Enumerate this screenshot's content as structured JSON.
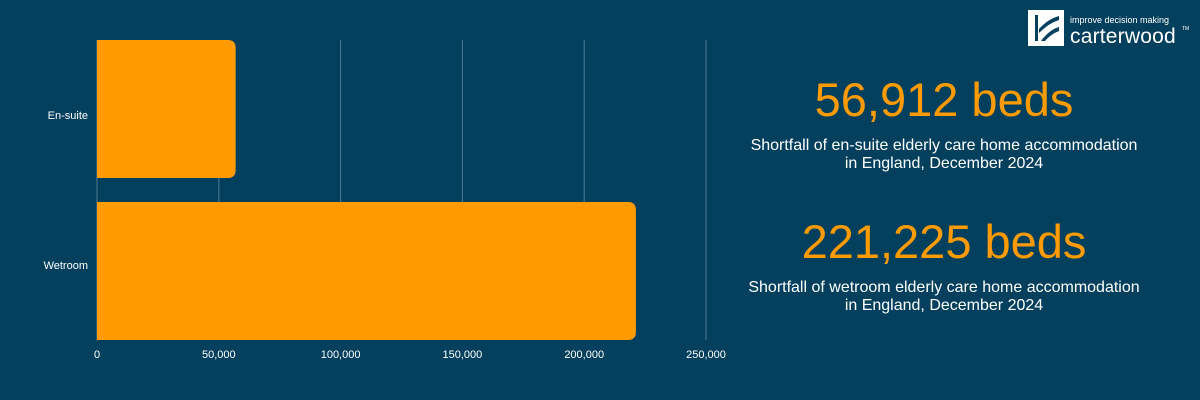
{
  "chart_data": {
    "type": "bar",
    "orientation": "horizontal",
    "categories": [
      "En-suite",
      "Wetroom"
    ],
    "values": [
      56912,
      221225
    ],
    "xlim": [
      0,
      250000
    ],
    "xticks": [
      "0",
      "50,000",
      "100,000",
      "150,000",
      "200,000",
      "250,000"
    ],
    "grid": true,
    "bar_color": "#ff9b00",
    "background_color": "#03405e"
  },
  "stats": [
    {
      "value": "56,912 beds",
      "description": "Shortfall of en-suite elderly care home accommodation in England, December 2024"
    },
    {
      "value": "221,225 beds",
      "description": "Shortfall of wetroom elderly care home accommodation in England, December 2024"
    }
  ],
  "logo": {
    "tagline": "improve decision making",
    "name": "carterwood"
  },
  "colors": {
    "accent": "#ff9b00",
    "text": "#ffffff"
  }
}
